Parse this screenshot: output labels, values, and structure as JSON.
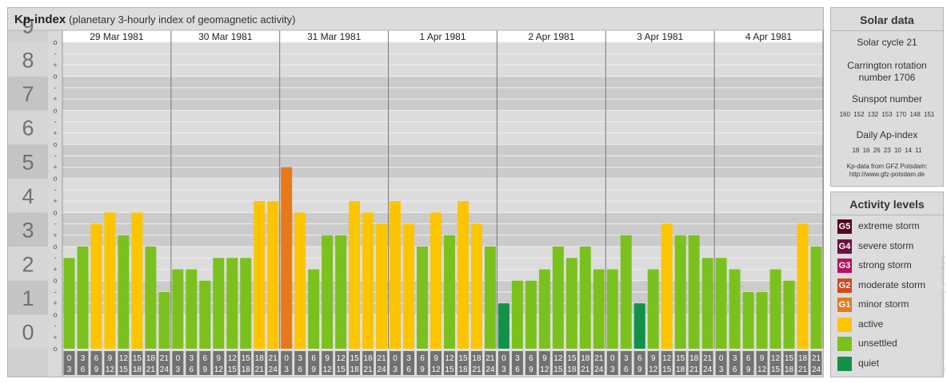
{
  "header": {
    "title": "Kp-index",
    "subtitle": "(planetary 3-hourly index of geomagnetic activity)"
  },
  "chart_data": {
    "type": "bar",
    "ylim": [
      0,
      9
    ],
    "y_ticks": [
      "0",
      "1",
      "2",
      "3",
      "4",
      "5",
      "6",
      "7",
      "8",
      "9"
    ],
    "minor_ticks": [
      "o",
      "+",
      "-"
    ],
    "days": [
      "29 Mar 1981",
      "30 Mar 1981",
      "31 Mar 1981",
      "1 Apr 1981",
      "2 Apr 1981",
      "3 Apr 1981",
      "4 Apr 1981"
    ],
    "hour_starts": [
      "0",
      "3",
      "6",
      "9",
      "12",
      "15",
      "18",
      "21"
    ],
    "hour_ends": [
      "3",
      "6",
      "9",
      "12",
      "15",
      "18",
      "21",
      "24"
    ],
    "values": [
      2.667,
      3.0,
      3.667,
      4.0,
      3.333,
      4.0,
      3.0,
      1.667,
      2.333,
      2.333,
      2.0,
      2.667,
      2.667,
      2.667,
      4.333,
      4.333,
      5.333,
      4.0,
      2.333,
      3.333,
      3.333,
      4.333,
      4.0,
      3.667,
      4.333,
      3.667,
      3.0,
      4.0,
      3.333,
      4.333,
      3.667,
      3.0,
      1.333,
      2.0,
      2.0,
      2.333,
      3.0,
      2.667,
      3.0,
      2.333,
      2.333,
      3.333,
      1.333,
      2.333,
      3.667,
      3.333,
      3.333,
      2.667,
      2.667,
      2.333,
      1.667,
      1.667,
      2.333,
      2.0,
      3.667,
      3.0
    ],
    "colors": {
      "quiet": "#13914a",
      "unsettled": "#7bc11e",
      "active": "#fdc400",
      "minor_storm": "#e8791a",
      "moderate_storm": "#d24a1f",
      "strong_storm": "#b5125f",
      "severe_storm": "#6e1040",
      "extreme_storm": "#52061c"
    }
  },
  "solar": {
    "title": "Solar data",
    "cycle": "Solar cycle 21",
    "carrington_line1": "Carrington rotation",
    "carrington_line2": "number 1706",
    "sunspot_title": "Sunspot number",
    "sunspot_values": "160 152 132 153 170 148 151",
    "ap_title": "Daily Ap-index",
    "ap_values": "18 16 26 23 10 14 11",
    "source_line1": "Kp-data from GFZ Potsdam:",
    "source_line2": "http://www.gfz-potsdam.de"
  },
  "activity": {
    "title": "Activity levels",
    "items": [
      {
        "badge": "G5",
        "label": "extreme storm",
        "color": "#52061c"
      },
      {
        "badge": "G4",
        "label": "severe storm",
        "color": "#6e1040"
      },
      {
        "badge": "G3",
        "label": "strong storm",
        "color": "#b5125f"
      },
      {
        "badge": "G2",
        "label": "moderate storm",
        "color": "#d24a1f"
      },
      {
        "badge": "G1",
        "label": "minor storm",
        "color": "#e8791a"
      },
      {
        "badge": "",
        "label": "active",
        "color": "#fdc400"
      },
      {
        "badge": "",
        "label": "unsettled",
        "color": "#7bc11e"
      },
      {
        "badge": "",
        "label": "quiet",
        "color": "#13914a"
      }
    ]
  },
  "watermark": "http://www.theusesofearth.net/kp_archive.php"
}
